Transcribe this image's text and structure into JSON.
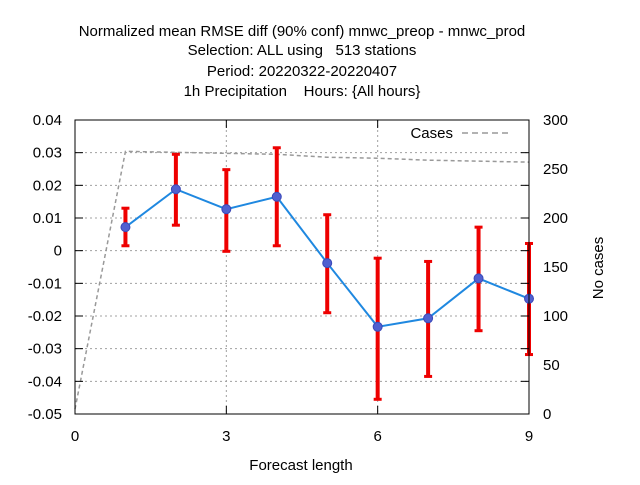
{
  "chart_data": {
    "type": "line",
    "title_lines": [
      "Normalized mean RMSE diff (90% conf) mnwc_preop - mnwc_prod",
      "Selection: ALL using   513 stations",
      "Period: 20220322-20220407",
      "1h Precipitation    Hours: {All hours}"
    ],
    "xlabel": "Forecast length",
    "ylabel_right": "No cases",
    "xlim": [
      0,
      9
    ],
    "ylim": [
      -0.05,
      0.04
    ],
    "y2lim": [
      0,
      300
    ],
    "x_ticks": [
      "0",
      "3",
      "6",
      "9"
    ],
    "y_ticks": [
      "0.04",
      "0.03",
      "0.02",
      "0.01",
      "0",
      "-0.01",
      "-0.02",
      "-0.03",
      "-0.04",
      "-0.05"
    ],
    "y2_ticks": [
      "300",
      "250",
      "200",
      "150",
      "100",
      "50",
      "0"
    ],
    "grid": true,
    "legend_position": "top-right",
    "colors": {
      "diff_line": "#1f88e0",
      "marker": "#5060d0",
      "errorbar": "#ee0000",
      "cases_line": "#999999"
    },
    "series": [
      {
        "id": "diff",
        "x": [
          1,
          2,
          3,
          4,
          5,
          6,
          7,
          8,
          9
        ],
        "y": [
          0.0072,
          0.0188,
          0.0127,
          0.0165,
          -0.0038,
          -0.0233,
          -0.0207,
          -0.0085,
          -0.0147
        ],
        "err_low": [
          0.0015,
          0.0078,
          -0.0002,
          0.0015,
          -0.019,
          -0.0455,
          -0.0385,
          -0.0245,
          -0.0318
        ],
        "err_high": [
          0.013,
          0.0295,
          0.0248,
          0.0315,
          0.011,
          -0.0023,
          -0.0033,
          0.0072,
          0.0022
        ]
      },
      {
        "id": "cases",
        "name": "Cases",
        "axis": "right",
        "x": [
          0,
          1,
          2,
          3,
          4,
          5,
          6,
          7,
          8,
          9
        ],
        "y": [
          5,
          268,
          267,
          266,
          265,
          262,
          261,
          259,
          258,
          257
        ]
      }
    ]
  }
}
